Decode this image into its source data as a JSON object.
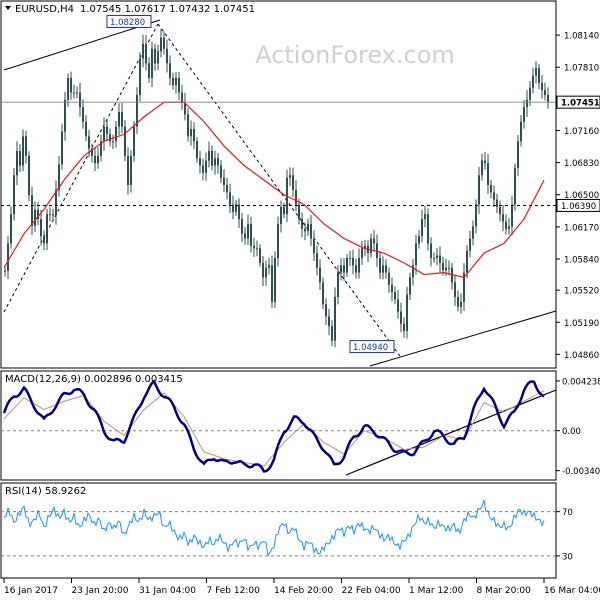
{
  "header": {
    "symbol": "EURUSD,H4",
    "ohlc": "1.07545 1.07617 1.07432 1.07451"
  },
  "watermark": "ActionForex.com",
  "chart_data": [
    {
      "name": "price",
      "type": "candlestick",
      "ylim": [
        1.0472,
        1.0848
      ],
      "y_ticks": [
        "1.08140",
        "1.07810",
        "1.07480",
        "1.07160",
        "1.06830",
        "1.06500",
        "1.06170",
        "1.05840",
        "1.05520",
        "1.05190",
        "1.04860"
      ],
      "last_price_label": "1.07451",
      "last_price": 1.07451,
      "hline_label": "1.06390",
      "hline_value": 1.0639,
      "high_label": "1.08280",
      "high_value": 1.0828,
      "low_label": "1.04940",
      "low_value": 1.0494,
      "close_path": [
        [
          0,
          1.0572
        ],
        [
          3,
          1.06
        ],
        [
          7,
          1.064
        ],
        [
          11,
          1.07
        ],
        [
          15,
          1.068
        ],
        [
          19,
          1.072
        ],
        [
          23,
          1.066
        ],
        [
          27,
          1.0618
        ],
        [
          31,
          1.064
        ],
        [
          35,
          1.061
        ],
        [
          39,
          1.06
        ],
        [
          43,
          1.064
        ],
        [
          47,
          1.062
        ],
        [
          51,
          1.0655
        ],
        [
          55,
          1.069
        ],
        [
          59,
          1.074
        ],
        [
          63,
          1.077
        ],
        [
          67,
          1.075
        ],
        [
          71,
          1.076
        ],
        [
          75,
          1.074
        ],
        [
          79,
          1.072
        ],
        [
          83,
          1.07
        ],
        [
          87,
          1.069
        ],
        [
          91,
          1.068
        ],
        [
          95,
          1.07
        ],
        [
          99,
          1.072
        ],
        [
          103,
          1.071
        ],
        [
          107,
          1.07
        ],
        [
          111,
          1.072
        ],
        [
          115,
          1.074
        ],
        [
          119,
          1.07
        ],
        [
          123,
          1.066
        ],
        [
          127,
          1.07
        ],
        [
          131,
          1.074
        ],
        [
          135,
          1.079
        ],
        [
          139,
          1.081
        ],
        [
          143,
          1.076
        ],
        [
          147,
          1.08
        ],
        [
          151,
          1.078
        ],
        [
          155,
          1.0815
        ],
        [
          159,
          1.08
        ],
        [
          163,
          1.078
        ],
        [
          167,
          1.076
        ],
        [
          171,
          1.077
        ],
        [
          175,
          1.075
        ],
        [
          179,
          1.074
        ],
        [
          183,
          1.071
        ],
        [
          187,
          1.072
        ],
        [
          191,
          1.069
        ],
        [
          195,
          1.068
        ],
        [
          199,
          1.067
        ],
        [
          203,
          1.07
        ],
        [
          207,
          1.068
        ],
        [
          211,
          1.069
        ],
        [
          215,
          1.067
        ],
        [
          219,
          1.066
        ],
        [
          223,
          1.065
        ],
        [
          227,
          1.063
        ],
        [
          231,
          1.064
        ],
        [
          235,
          1.062
        ],
        [
          239,
          1.06
        ],
        [
          243,
          1.062
        ],
        [
          247,
          1.059
        ],
        [
          251,
          1.06
        ],
        [
          255,
          1.058
        ],
        [
          259,
          1.056
        ],
        [
          263,
          1.059
        ],
        [
          267,
          1.054
        ],
        [
          271,
          1.06
        ],
        [
          275,
          1.064
        ],
        [
          279,
          1.063
        ],
        [
          283,
          1.068
        ],
        [
          287,
          1.066
        ],
        [
          291,
          1.064
        ],
        [
          295,
          1.062
        ],
        [
          299,
          1.061
        ],
        [
          303,
          1.062
        ],
        [
          307,
          1.06
        ],
        [
          311,
          1.058
        ],
        [
          315,
          1.056
        ],
        [
          319,
          1.053
        ],
        [
          323,
          1.052
        ],
        [
          327,
          1.05
        ],
        [
          331,
          1.056
        ],
        [
          335,
          1.058
        ],
        [
          339,
          1.057
        ],
        [
          343,
          1.059
        ],
        [
          347,
          1.058
        ],
        [
          351,
          1.057
        ],
        [
          355,
          1.059
        ],
        [
          359,
          1.06
        ],
        [
          363,
          1.059
        ],
        [
          367,
          1.061
        ],
        [
          371,
          1.059
        ],
        [
          375,
          1.057
        ],
        [
          379,
          1.058
        ],
        [
          383,
          1.056
        ],
        [
          387,
          1.055
        ],
        [
          391,
          1.054
        ],
        [
          395,
          1.052
        ],
        [
          399,
          1.051
        ],
        [
          403,
          1.056
        ],
        [
          407,
          1.057
        ],
        [
          411,
          1.06
        ],
        [
          415,
          1.061
        ],
        [
          419,
          1.064
        ],
        [
          423,
          1.06
        ],
        [
          427,
          1.058
        ],
        [
          431,
          1.059
        ],
        [
          435,
          1.058
        ],
        [
          439,
          1.057
        ],
        [
          443,
          1.058
        ],
        [
          447,
          1.056
        ],
        [
          451,
          1.054
        ],
        [
          455,
          1.053
        ],
        [
          459,
          1.057
        ],
        [
          463,
          1.06
        ],
        [
          467,
          1.061
        ],
        [
          471,
          1.064
        ],
        [
          475,
          1.068
        ],
        [
          479,
          1.069
        ],
        [
          483,
          1.066
        ],
        [
          487,
          1.065
        ],
        [
          491,
          1.064
        ],
        [
          495,
          1.063
        ],
        [
          499,
          1.062
        ],
        [
          503,
          1.061
        ],
        [
          507,
          1.064
        ],
        [
          511,
          1.069
        ],
        [
          515,
          1.072
        ],
        [
          519,
          1.074
        ],
        [
          523,
          1.075
        ],
        [
          527,
          1.077
        ],
        [
          531,
          1.078
        ],
        [
          535,
          1.076
        ],
        [
          539,
          1.0755
        ],
        [
          543,
          1.0745
        ]
      ],
      "ma_path": [
        [
          0,
          1.0575
        ],
        [
          20,
          1.061
        ],
        [
          40,
          1.0635
        ],
        [
          60,
          1.0665
        ],
        [
          80,
          1.069
        ],
        [
          100,
          1.0705
        ],
        [
          120,
          1.0712
        ],
        [
          140,
          1.073
        ],
        [
          160,
          1.0745
        ],
        [
          180,
          1.0745
        ],
        [
          200,
          1.0725
        ],
        [
          220,
          1.07
        ],
        [
          240,
          1.068
        ],
        [
          260,
          1.0665
        ],
        [
          280,
          1.065
        ],
        [
          300,
          1.064
        ],
        [
          320,
          1.062
        ],
        [
          340,
          1.0605
        ],
        [
          360,
          1.0595
        ],
        [
          380,
          1.059
        ],
        [
          400,
          1.058
        ],
        [
          420,
          1.0568
        ],
        [
          440,
          1.057
        ],
        [
          460,
          1.0565
        ],
        [
          480,
          1.059
        ],
        [
          500,
          1.06
        ],
        [
          520,
          1.0625
        ],
        [
          540,
          1.0665
        ]
      ]
    },
    {
      "name": "macd",
      "type": "line",
      "label": "MACD(12,26,9) 0.002896 0.003415",
      "ylim": [
        -0.0042,
        0.005
      ],
      "y_ticks": [
        "0.004238",
        "0.00",
        "-0.003404"
      ],
      "macd_path": [
        [
          0,
          0.0015
        ],
        [
          10,
          0.003
        ],
        [
          20,
          0.0035
        ],
        [
          30,
          0.0022
        ],
        [
          40,
          0.0008
        ],
        [
          50,
          0.002
        ],
        [
          60,
          0.003
        ],
        [
          70,
          0.0036
        ],
        [
          80,
          0.003
        ],
        [
          90,
          0.0018
        ],
        [
          100,
          0.0
        ],
        [
          110,
          -0.001
        ],
        [
          120,
          -0.0008
        ],
        [
          130,
          0.001
        ],
        [
          140,
          0.003
        ],
        [
          150,
          0.004
        ],
        [
          160,
          0.003
        ],
        [
          170,
          0.002
        ],
        [
          180,
          0.0005
        ],
        [
          190,
          -0.0015
        ],
        [
          200,
          -0.003
        ],
        [
          210,
          -0.0022
        ],
        [
          220,
          -0.0028
        ],
        [
          230,
          -0.0025
        ],
        [
          240,
          -0.003
        ],
        [
          250,
          -0.0028
        ],
        [
          260,
          -0.0035
        ],
        [
          270,
          -0.0025
        ],
        [
          280,
          0.0
        ],
        [
          290,
          0.001
        ],
        [
          300,
          0.0008
        ],
        [
          310,
          -0.0005
        ],
        [
          320,
          -0.0015
        ],
        [
          330,
          -0.003
        ],
        [
          340,
          -0.0022
        ],
        [
          350,
          -0.0005
        ],
        [
          360,
          0.0003
        ],
        [
          370,
          0.0
        ],
        [
          380,
          -0.0008
        ],
        [
          390,
          -0.0015
        ],
        [
          400,
          -0.002
        ],
        [
          410,
          -0.0018
        ],
        [
          420,
          -0.001
        ],
        [
          430,
          0.0
        ],
        [
          440,
          -0.0005
        ],
        [
          450,
          -0.0012
        ],
        [
          460,
          -0.0005
        ],
        [
          470,
          0.0018
        ],
        [
          480,
          0.0038
        ],
        [
          490,
          0.0022
        ],
        [
          500,
          0.0005
        ],
        [
          510,
          0.0015
        ],
        [
          520,
          0.0035
        ],
        [
          530,
          0.0042
        ],
        [
          540,
          0.0028
        ]
      ],
      "signal_path": [
        [
          0,
          0.001
        ],
        [
          20,
          0.0028
        ],
        [
          40,
          0.0018
        ],
        [
          60,
          0.0025
        ],
        [
          80,
          0.003
        ],
        [
          100,
          0.0008
        ],
        [
          120,
          -0.0004
        ],
        [
          140,
          0.0018
        ],
        [
          160,
          0.0032
        ],
        [
          180,
          0.0012
        ],
        [
          200,
          -0.0018
        ],
        [
          220,
          -0.0024
        ],
        [
          240,
          -0.0027
        ],
        [
          260,
          -0.003
        ],
        [
          280,
          -0.001
        ],
        [
          300,
          0.0006
        ],
        [
          320,
          -0.001
        ],
        [
          340,
          -0.002
        ],
        [
          360,
          0.0
        ],
        [
          380,
          -0.0006
        ],
        [
          400,
          -0.0016
        ],
        [
          420,
          -0.0014
        ],
        [
          440,
          -0.0004
        ],
        [
          460,
          -0.0008
        ],
        [
          480,
          0.0024
        ],
        [
          500,
          0.0016
        ],
        [
          520,
          0.0025
        ],
        [
          540,
          0.0034
        ]
      ]
    },
    {
      "name": "rsi",
      "type": "line",
      "label": "RSI(14) 58.9262",
      "ylim": [
        10,
        95
      ],
      "y_ticks": [
        "70",
        "30"
      ],
      "rsi_path": [
        [
          0,
          65
        ],
        [
          5,
          72
        ],
        [
          10,
          60
        ],
        [
          15,
          68
        ],
        [
          20,
          74
        ],
        [
          25,
          58
        ],
        [
          30,
          62
        ],
        [
          35,
          70
        ],
        [
          40,
          55
        ],
        [
          45,
          66
        ],
        [
          50,
          72
        ],
        [
          55,
          64
        ],
        [
          60,
          70
        ],
        [
          65,
          60
        ],
        [
          70,
          66
        ],
        [
          75,
          55
        ],
        [
          80,
          62
        ],
        [
          85,
          68
        ],
        [
          90,
          58
        ],
        [
          95,
          64
        ],
        [
          100,
          52
        ],
        [
          105,
          60
        ],
        [
          110,
          55
        ],
        [
          115,
          62
        ],
        [
          120,
          48
        ],
        [
          125,
          58
        ],
        [
          130,
          66
        ],
        [
          135,
          60
        ],
        [
          140,
          70
        ],
        [
          145,
          62
        ],
        [
          150,
          66
        ],
        [
          155,
          70
        ],
        [
          160,
          55
        ],
        [
          165,
          60
        ],
        [
          170,
          52
        ],
        [
          175,
          45
        ],
        [
          180,
          50
        ],
        [
          185,
          40
        ],
        [
          190,
          48
        ],
        [
          195,
          42
        ],
        [
          200,
          38
        ],
        [
          205,
          45
        ],
        [
          210,
          40
        ],
        [
          215,
          48
        ],
        [
          220,
          42
        ],
        [
          225,
          36
        ],
        [
          230,
          44
        ],
        [
          235,
          40
        ],
        [
          240,
          46
        ],
        [
          245,
          36
        ],
        [
          250,
          42
        ],
        [
          255,
          38
        ],
        [
          260,
          45
        ],
        [
          265,
          30
        ],
        [
          270,
          40
        ],
        [
          275,
          55
        ],
        [
          280,
          60
        ],
        [
          285,
          50
        ],
        [
          290,
          56
        ],
        [
          295,
          45
        ],
        [
          300,
          38
        ],
        [
          305,
          44
        ],
        [
          310,
          36
        ],
        [
          315,
          32
        ],
        [
          320,
          38
        ],
        [
          325,
          42
        ],
        [
          330,
          48
        ],
        [
          335,
          56
        ],
        [
          340,
          50
        ],
        [
          345,
          58
        ],
        [
          350,
          52
        ],
        [
          355,
          60
        ],
        [
          360,
          55
        ],
        [
          365,
          52
        ],
        [
          370,
          56
        ],
        [
          375,
          50
        ],
        [
          380,
          45
        ],
        [
          385,
          48
        ],
        [
          390,
          42
        ],
        [
          395,
          38
        ],
        [
          400,
          44
        ],
        [
          405,
          48
        ],
        [
          410,
          58
        ],
        [
          415,
          66
        ],
        [
          420,
          60
        ],
        [
          425,
          62
        ],
        [
          430,
          55
        ],
        [
          435,
          60
        ],
        [
          440,
          56
        ],
        [
          445,
          54
        ],
        [
          450,
          58
        ],
        [
          455,
          50
        ],
        [
          460,
          62
        ],
        [
          465,
          68
        ],
        [
          470,
          64
        ],
        [
          475,
          72
        ],
        [
          480,
          78
        ],
        [
          485,
          66
        ],
        [
          490,
          62
        ],
        [
          495,
          56
        ],
        [
          500,
          58
        ],
        [
          505,
          54
        ],
        [
          510,
          64
        ],
        [
          515,
          72
        ],
        [
          520,
          68
        ],
        [
          525,
          70
        ],
        [
          530,
          66
        ],
        [
          535,
          62
        ],
        [
          540,
          59
        ]
      ]
    }
  ],
  "x_axis": {
    "labels": [
      "16 Jan 2017",
      "23 Jan 20:00",
      "31 Jan 04:00",
      "7 Feb 12:00",
      "14 Feb 20:00",
      "22 Feb 04:00",
      "1 Mar 12:00",
      "8 Mar 20:00",
      "16 Mar 04:00"
    ]
  },
  "colors": {
    "candle": "#2f4f4f",
    "ma": "#e01b1b",
    "macd": "#000080",
    "signal": "#c88a8a",
    "rsi": "#1e90ff",
    "text": "#000000",
    "grid": "#808080"
  }
}
